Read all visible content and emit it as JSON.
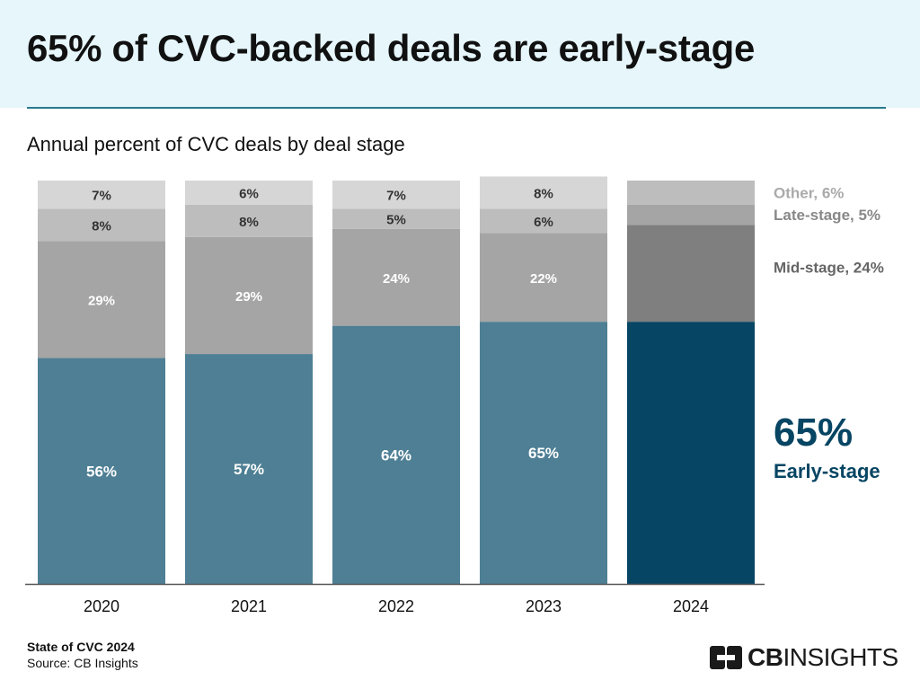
{
  "header": {
    "title": "65% of CVC-backed deals are early-stage",
    "subtitle": "Annual percent of CVC deals by deal stage"
  },
  "chart_data": {
    "type": "bar",
    "stacked": true,
    "categories": [
      "2020",
      "2021",
      "2022",
      "2023",
      "2024"
    ],
    "series": [
      {
        "name": "Early-stage",
        "values": [
          56,
          57,
          64,
          65,
          65
        ],
        "color": "#4e7f94",
        "highlight_color": "#064563",
        "label_color": "#ffffff"
      },
      {
        "name": "Mid-stage",
        "values": [
          29,
          29,
          24,
          22,
          24
        ],
        "color": "#a5a5a5",
        "highlight_color": "#7f7f7f",
        "label_color": "#ffffff"
      },
      {
        "name": "Late-stage",
        "values": [
          8,
          8,
          5,
          6,
          5
        ],
        "color": "#bdbdbd",
        "highlight_color": "#a5a5a5",
        "label_color": "#333333"
      },
      {
        "name": "Other",
        "values": [
          7,
          6,
          7,
          8,
          6
        ],
        "color": "#d6d6d6",
        "highlight_color": "#bdbdbd",
        "label_color": "#333333"
      }
    ],
    "highlight_category": "2024",
    "ylim": [
      0,
      100
    ],
    "legend": {
      "other": "Other, 6%",
      "late": "Late-stage, 5%",
      "mid": "Mid-stage, 24%",
      "early_value": "65%",
      "early_label": "Early-stage"
    },
    "colors": {
      "legend_other": "#aaaaaa",
      "legend_late": "#888888",
      "legend_mid": "#666666",
      "legend_early": "#064563",
      "axis": "#555555"
    }
  },
  "footer": {
    "source_title": "State of CVC 2024",
    "source": "Source: CB Insights",
    "logo_bold": "CB",
    "logo_rest": "INSIGHTS"
  }
}
